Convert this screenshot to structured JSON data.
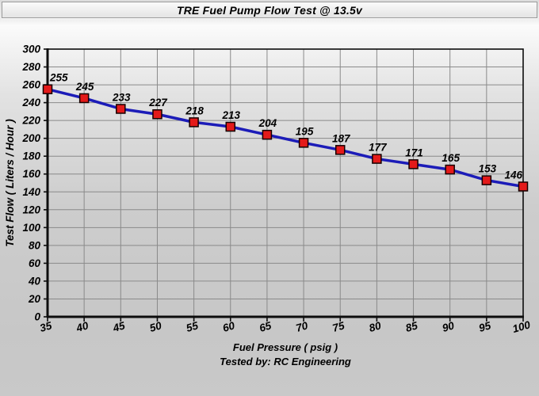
{
  "title": "TRE Fuel Pump Flow Test @ 13.5v",
  "chart_data": {
    "type": "line",
    "title": "TRE Fuel Pump Flow Test @ 13.5v",
    "xlabel": "Fuel Pressure ( psig )",
    "ylabel": "Test Flow ( Liters / Hour )",
    "annotation": "Tested by: RC Engineering",
    "x": [
      35,
      40,
      45,
      50,
      55,
      60,
      65,
      70,
      75,
      80,
      85,
      90,
      95,
      100
    ],
    "values": [
      255,
      245,
      233,
      227,
      218,
      213,
      204,
      195,
      187,
      177,
      171,
      165,
      153,
      146
    ],
    "xlim": [
      35,
      100
    ],
    "ylim": [
      0,
      300
    ],
    "x_tick_step": 5,
    "y_tick_step": 20,
    "grid": true,
    "legend": "none",
    "data_labels": true,
    "colors": {
      "line": "#1c1cb8",
      "marker_fill": "#e41a1a",
      "marker_border": "#150000",
      "grid": "#8a8a8a",
      "axis": "#0d0d0d",
      "text": "#000000"
    }
  }
}
